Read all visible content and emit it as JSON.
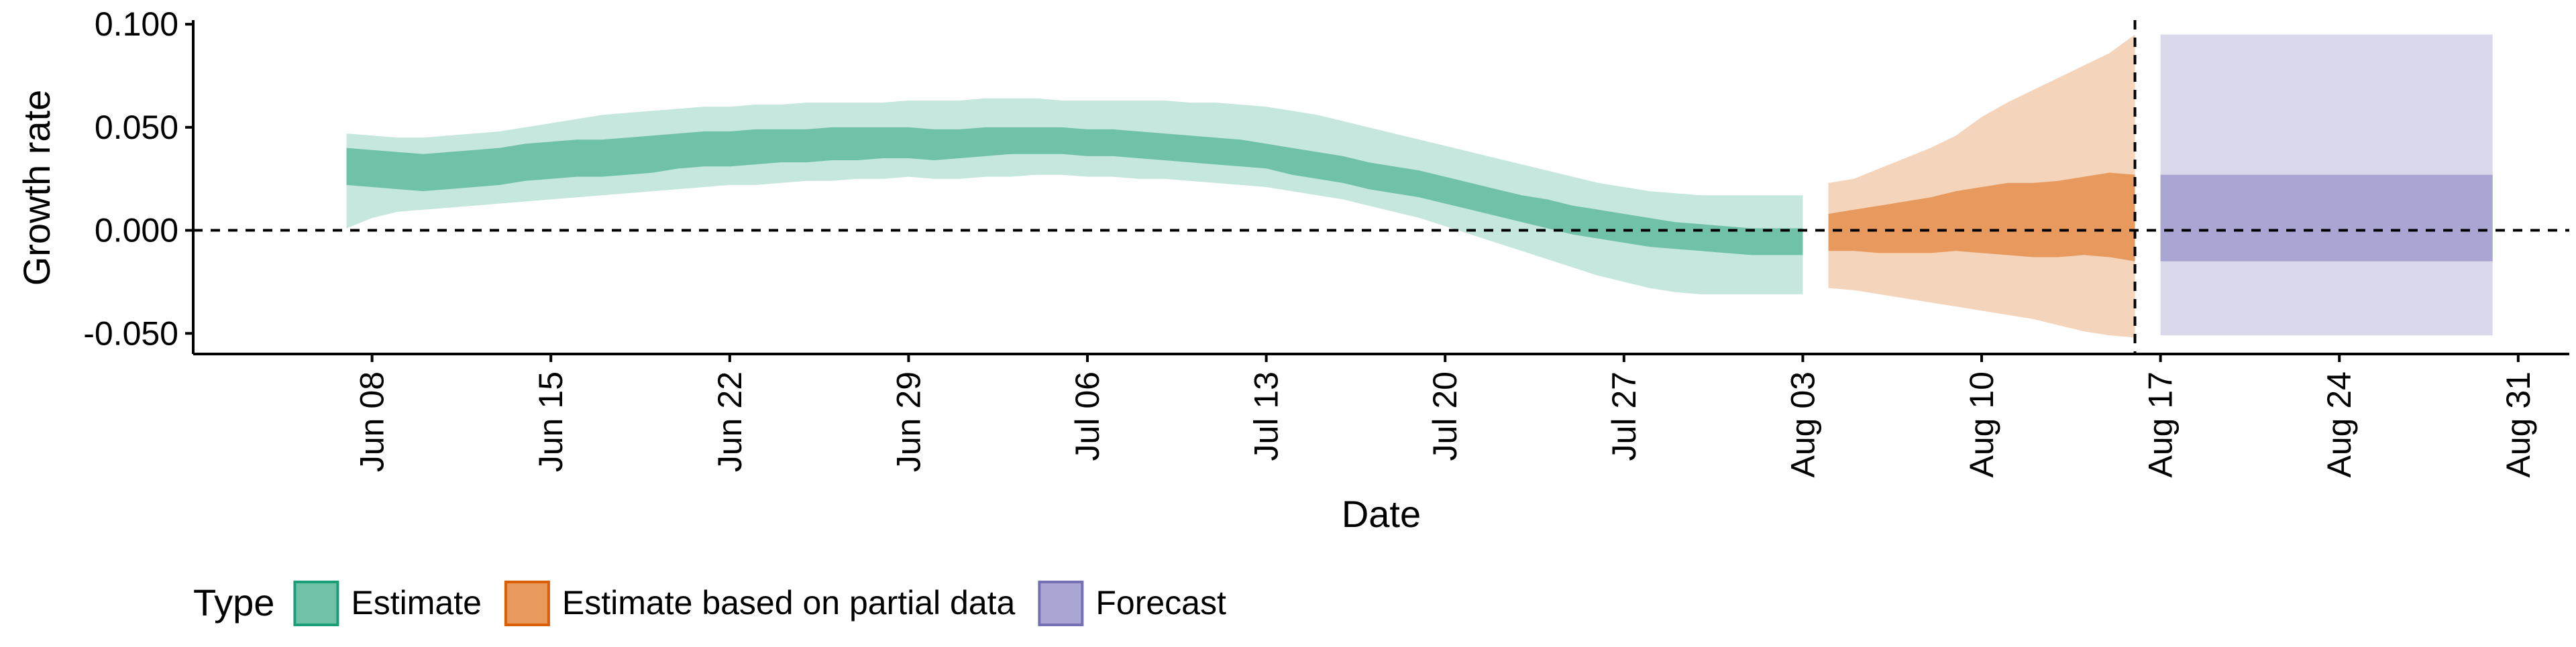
{
  "chart_data": {
    "type": "area",
    "xlabel": "Date",
    "ylabel": "Growth rate",
    "x_range": [
      "2020-06-01",
      "2020-09-02"
    ],
    "ylim": [
      -0.06,
      0.102
    ],
    "y_ticks": [
      -0.05,
      0.0,
      0.05,
      0.1
    ],
    "y_tick_labels": [
      "-0.050",
      "0.000",
      "0.050",
      "0.100"
    ],
    "x_ticks": [
      "2020-06-08",
      "2020-06-15",
      "2020-06-22",
      "2020-06-29",
      "2020-07-06",
      "2020-07-13",
      "2020-07-20",
      "2020-07-27",
      "2020-08-03",
      "2020-08-10",
      "2020-08-17",
      "2020-08-24",
      "2020-08-31"
    ],
    "x_tick_labels": [
      "Jun 08",
      "Jun 15",
      "Jun 22",
      "Jun 29",
      "Jul 06",
      "Jul 13",
      "Jul 20",
      "Jul 27",
      "Aug 03",
      "Aug 10",
      "Aug 17",
      "Aug 24",
      "Aug 31"
    ],
    "reference_lines": [
      {
        "orientation": "horizontal",
        "value": 0,
        "style": "dashed"
      },
      {
        "orientation": "vertical",
        "value": "2020-08-16",
        "style": "dashed"
      }
    ],
    "legend": {
      "title": "Type",
      "position": "bottom-left",
      "entries": [
        {
          "label": "Estimate",
          "fill": "#6FC2A8",
          "stroke": "#1B9E77"
        },
        {
          "label": "Estimate based on partial data",
          "fill": "#E89A5E",
          "stroke": "#D95F02"
        },
        {
          "label": "Forecast",
          "fill": "#A9A6D3",
          "stroke": "#7570B3"
        }
      ]
    },
    "series": [
      {
        "name": "Estimate",
        "inner_fill": "#6FC2A8",
        "outer_fill": "#C5E7DD",
        "dates": [
          "2020-06-07",
          "2020-06-08",
          "2020-06-09",
          "2020-06-10",
          "2020-06-11",
          "2020-06-12",
          "2020-06-13",
          "2020-06-14",
          "2020-06-15",
          "2020-06-16",
          "2020-06-17",
          "2020-06-18",
          "2020-06-19",
          "2020-06-20",
          "2020-06-21",
          "2020-06-22",
          "2020-06-23",
          "2020-06-24",
          "2020-06-25",
          "2020-06-26",
          "2020-06-27",
          "2020-06-28",
          "2020-06-29",
          "2020-06-30",
          "2020-07-01",
          "2020-07-02",
          "2020-07-03",
          "2020-07-04",
          "2020-07-05",
          "2020-07-06",
          "2020-07-07",
          "2020-07-08",
          "2020-07-09",
          "2020-07-10",
          "2020-07-11",
          "2020-07-12",
          "2020-07-13",
          "2020-07-14",
          "2020-07-15",
          "2020-07-16",
          "2020-07-17",
          "2020-07-18",
          "2020-07-19",
          "2020-07-20",
          "2020-07-21",
          "2020-07-22",
          "2020-07-23",
          "2020-07-24",
          "2020-07-25",
          "2020-07-26",
          "2020-07-27",
          "2020-07-28",
          "2020-07-29",
          "2020-07-30",
          "2020-07-31",
          "2020-08-01",
          "2020-08-02",
          "2020-08-03"
        ],
        "lower_90": [
          0.001,
          0.006,
          0.009,
          0.01,
          0.011,
          0.012,
          0.013,
          0.014,
          0.015,
          0.016,
          0.017,
          0.018,
          0.019,
          0.02,
          0.021,
          0.022,
          0.022,
          0.023,
          0.024,
          0.024,
          0.025,
          0.025,
          0.026,
          0.025,
          0.025,
          0.026,
          0.026,
          0.027,
          0.027,
          0.026,
          0.026,
          0.025,
          0.025,
          0.024,
          0.023,
          0.022,
          0.021,
          0.019,
          0.017,
          0.015,
          0.012,
          0.009,
          0.006,
          0.002,
          -0.002,
          -0.006,
          -0.01,
          -0.014,
          -0.018,
          -0.022,
          -0.025,
          -0.028,
          -0.03,
          -0.031,
          -0.031,
          -0.031,
          -0.031,
          -0.031
        ],
        "lower_50": [
          0.022,
          0.021,
          0.02,
          0.019,
          0.02,
          0.021,
          0.022,
          0.024,
          0.025,
          0.026,
          0.026,
          0.027,
          0.028,
          0.03,
          0.031,
          0.031,
          0.032,
          0.033,
          0.033,
          0.034,
          0.034,
          0.035,
          0.035,
          0.034,
          0.035,
          0.036,
          0.037,
          0.037,
          0.037,
          0.036,
          0.036,
          0.035,
          0.034,
          0.033,
          0.032,
          0.031,
          0.03,
          0.027,
          0.025,
          0.023,
          0.02,
          0.018,
          0.016,
          0.013,
          0.01,
          0.007,
          0.004,
          0.001,
          -0.002,
          -0.004,
          -0.006,
          -0.008,
          -0.009,
          -0.01,
          -0.011,
          -0.012,
          -0.012,
          -0.012
        ],
        "upper_50": [
          0.04,
          0.039,
          0.038,
          0.037,
          0.038,
          0.039,
          0.04,
          0.042,
          0.043,
          0.044,
          0.044,
          0.045,
          0.046,
          0.047,
          0.048,
          0.048,
          0.049,
          0.049,
          0.049,
          0.05,
          0.05,
          0.05,
          0.05,
          0.049,
          0.049,
          0.05,
          0.05,
          0.05,
          0.05,
          0.049,
          0.049,
          0.048,
          0.047,
          0.046,
          0.045,
          0.044,
          0.042,
          0.04,
          0.038,
          0.036,
          0.033,
          0.031,
          0.029,
          0.026,
          0.023,
          0.02,
          0.017,
          0.015,
          0.012,
          0.01,
          0.008,
          0.006,
          0.004,
          0.003,
          0.002,
          0.001,
          0.001,
          0.001
        ],
        "upper_90": [
          0.047,
          0.046,
          0.045,
          0.045,
          0.046,
          0.047,
          0.048,
          0.05,
          0.052,
          0.054,
          0.056,
          0.057,
          0.058,
          0.059,
          0.06,
          0.06,
          0.061,
          0.061,
          0.062,
          0.062,
          0.062,
          0.062,
          0.063,
          0.063,
          0.063,
          0.064,
          0.064,
          0.064,
          0.063,
          0.063,
          0.063,
          0.063,
          0.063,
          0.062,
          0.062,
          0.061,
          0.06,
          0.058,
          0.056,
          0.053,
          0.05,
          0.047,
          0.044,
          0.041,
          0.038,
          0.035,
          0.032,
          0.029,
          0.026,
          0.023,
          0.021,
          0.019,
          0.018,
          0.017,
          0.017,
          0.017,
          0.017,
          0.017
        ]
      },
      {
        "name": "Estimate based on partial data",
        "inner_fill": "#E89A5E",
        "outer_fill": "#F4D4BA",
        "dates": [
          "2020-08-04",
          "2020-08-05",
          "2020-08-06",
          "2020-08-07",
          "2020-08-08",
          "2020-08-09",
          "2020-08-10",
          "2020-08-11",
          "2020-08-12",
          "2020-08-13",
          "2020-08-14",
          "2020-08-15",
          "2020-08-16"
        ],
        "lower_90": [
          -0.028,
          -0.029,
          -0.031,
          -0.033,
          -0.035,
          -0.037,
          -0.039,
          -0.041,
          -0.043,
          -0.046,
          -0.049,
          -0.051,
          -0.052
        ],
        "lower_50": [
          -0.01,
          -0.01,
          -0.011,
          -0.011,
          -0.011,
          -0.01,
          -0.011,
          -0.012,
          -0.013,
          -0.013,
          -0.012,
          -0.013,
          -0.015
        ],
        "upper_50": [
          0.008,
          0.01,
          0.012,
          0.014,
          0.016,
          0.019,
          0.021,
          0.023,
          0.023,
          0.024,
          0.026,
          0.028,
          0.027
        ],
        "upper_90": [
          0.023,
          0.025,
          0.03,
          0.035,
          0.04,
          0.046,
          0.055,
          0.062,
          0.068,
          0.074,
          0.08,
          0.086,
          0.095
        ]
      },
      {
        "name": "Forecast",
        "inner_fill": "#A9A6D3",
        "outer_fill": "#DAD9EC",
        "dates": [
          "2020-08-17",
          "2020-08-30"
        ],
        "lower_90": [
          -0.051,
          -0.051
        ],
        "lower_50": [
          -0.015,
          -0.015
        ],
        "upper_50": [
          0.027,
          0.027
        ],
        "upper_90": [
          0.095,
          0.095
        ]
      }
    ]
  }
}
